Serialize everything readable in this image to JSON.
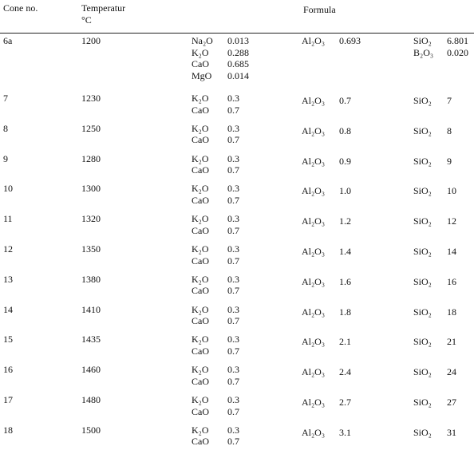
{
  "header": {
    "cone": "Cone no.",
    "temperature": "Temperatur",
    "unit": "°C",
    "formula": "Formula"
  },
  "table": {
    "rows": [
      {
        "cone": "6a",
        "temp": "1200",
        "flux": [
          [
            "Na₂O",
            "0.013"
          ],
          [
            "K₂O",
            "0.288"
          ],
          [
            "CaO",
            "0.685"
          ],
          [
            "MgO",
            "0.014"
          ]
        ],
        "alumina": [
          "Al₂O₃",
          "0.693"
        ],
        "silica": [
          [
            "SiO₂",
            "6.801"
          ],
          [
            "B₂O₃",
            "0.020"
          ]
        ]
      },
      {
        "cone": "7",
        "temp": "1230",
        "flux": [
          [
            "K₂O",
            "0.3"
          ],
          [
            "CaO",
            "0.7"
          ]
        ],
        "alumina": [
          "Al₂O₃",
          "0.7"
        ],
        "silica": [
          [
            "SiO₂",
            "7"
          ]
        ]
      },
      {
        "cone": "8",
        "temp": "1250",
        "flux": [
          [
            "K₂O",
            "0.3"
          ],
          [
            "CaO",
            "0.7"
          ]
        ],
        "alumina": [
          "Al₂O₃",
          "0.8"
        ],
        "silica": [
          [
            "SiO₂",
            "8"
          ]
        ]
      },
      {
        "cone": "9",
        "temp": "1280",
        "flux": [
          [
            "K₂O",
            "0.3"
          ],
          [
            "CaO",
            "0.7"
          ]
        ],
        "alumina": [
          "Al₂O₃",
          "0.9"
        ],
        "silica": [
          [
            "SiO₂",
            "9"
          ]
        ]
      },
      {
        "cone": "10",
        "temp": "1300",
        "flux": [
          [
            "K₂O",
            "0.3"
          ],
          [
            "CaO",
            "0.7"
          ]
        ],
        "alumina": [
          "Al₂O₃",
          "1.0"
        ],
        "silica": [
          [
            "SiO₂",
            "10"
          ]
        ]
      },
      {
        "cone": "11",
        "temp": "1320",
        "flux": [
          [
            "K₂O",
            "0.3"
          ],
          [
            "CaO",
            "0.7"
          ]
        ],
        "alumina": [
          "Al₂O₃",
          "1.2"
        ],
        "silica": [
          [
            "SiO₂",
            "12"
          ]
        ]
      },
      {
        "cone": "12",
        "temp": "1350",
        "flux": [
          [
            "K₂O",
            "0.3"
          ],
          [
            "CaO",
            "0.7"
          ]
        ],
        "alumina": [
          "Al₂O₃",
          "1.4"
        ],
        "silica": [
          [
            "SiO₂",
            "14"
          ]
        ]
      },
      {
        "cone": "13",
        "temp": "1380",
        "flux": [
          [
            "K₂O",
            "0.3"
          ],
          [
            "CaO",
            "0.7"
          ]
        ],
        "alumina": [
          "Al₂O₃",
          "1.6"
        ],
        "silica": [
          [
            "SiO₂",
            "16"
          ]
        ]
      },
      {
        "cone": "14",
        "temp": "1410",
        "flux": [
          [
            "K₂O",
            "0.3"
          ],
          [
            "CaO",
            "0.7"
          ]
        ],
        "alumina": [
          "Al₂O₃",
          "1.8"
        ],
        "silica": [
          [
            "SiO₂",
            "18"
          ]
        ]
      },
      {
        "cone": "15",
        "temp": "1435",
        "flux": [
          [
            "K₂O",
            "0.3"
          ],
          [
            "CaO",
            "0.7"
          ]
        ],
        "alumina": [
          "Al₂O₃",
          "2.1"
        ],
        "silica": [
          [
            "SiO₂",
            "21"
          ]
        ]
      },
      {
        "cone": "16",
        "temp": "1460",
        "flux": [
          [
            "K₂O",
            "0.3"
          ],
          [
            "CaO",
            "0.7"
          ]
        ],
        "alumina": [
          "Al₂O₃",
          "2.4"
        ],
        "silica": [
          [
            "SiO₂",
            "24"
          ]
        ]
      },
      {
        "cone": "17",
        "temp": "1480",
        "flux": [
          [
            "K₂O",
            "0.3"
          ],
          [
            "CaO",
            "0.7"
          ]
        ],
        "alumina": [
          "Al₂O₃",
          "2.7"
        ],
        "silica": [
          [
            "SiO₂",
            "27"
          ]
        ]
      },
      {
        "cone": "18",
        "temp": "1500",
        "flux": [
          [
            "K₂O",
            "0.3"
          ],
          [
            "CaO",
            "0.7"
          ]
        ],
        "alumina": [
          "Al₂O₃",
          "3.1"
        ],
        "silica": [
          [
            "SiO₂",
            "31"
          ]
        ]
      }
    ]
  }
}
